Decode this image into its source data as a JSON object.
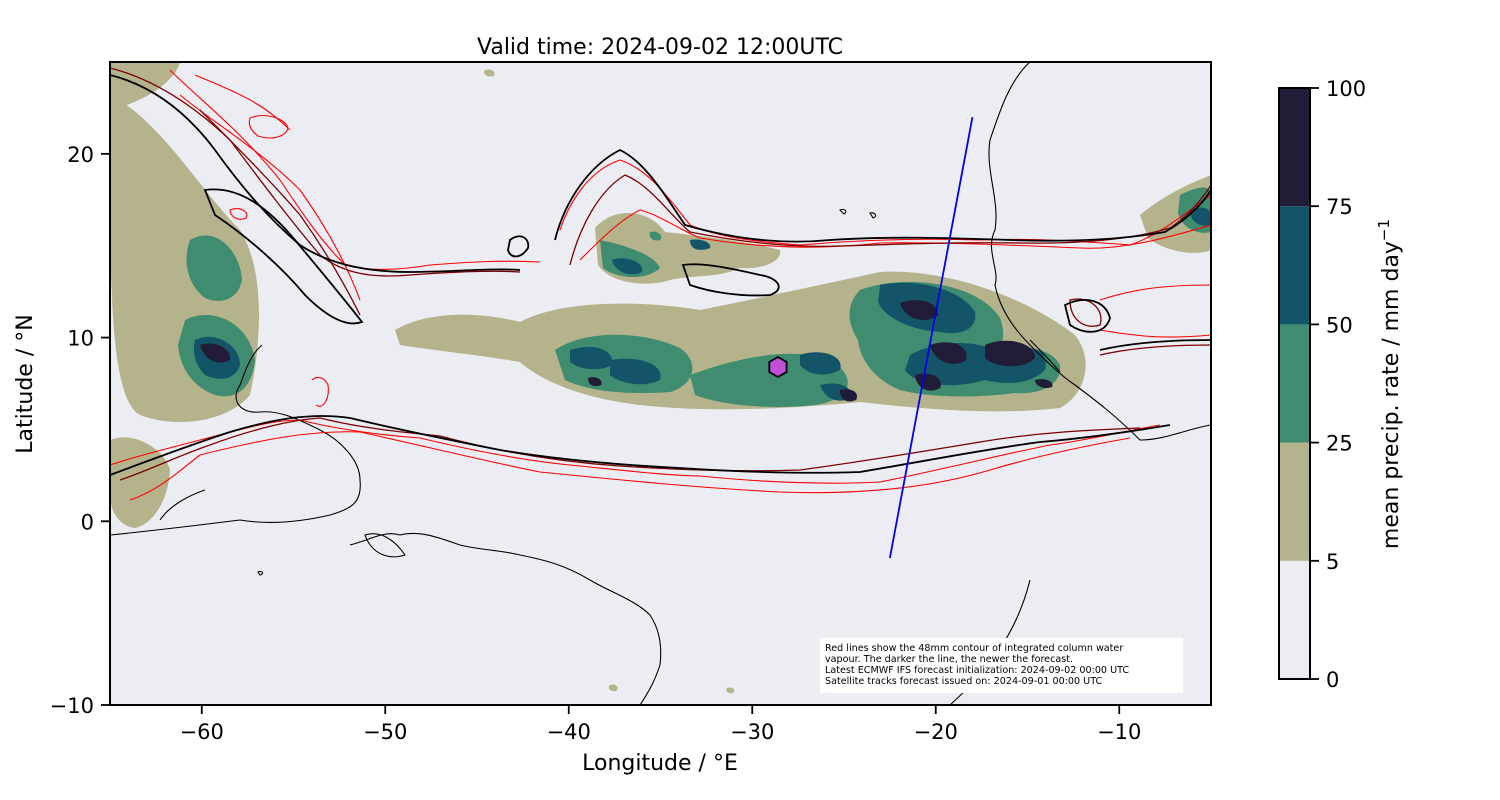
{
  "title": "Valid time: 2024-09-02 12:00UTC",
  "colors": {
    "background": "#ecedf2",
    "precip_5_25": "#b5b38b",
    "precip_25_50": "#3f8c70",
    "precip_50_75": "#145468",
    "precip_75_100": "#211d38",
    "iwv_contour_old": "#ff0000",
    "iwv_contour_new": "#000000",
    "satellite_track": "#0000ee",
    "marker": "#c04fd4"
  },
  "map": {
    "lon_range": [
      -65,
      -5
    ],
    "lat_range": [
      -10,
      25
    ],
    "x_ticks": [
      {
        "value": -60,
        "label": "−60"
      },
      {
        "value": -50,
        "label": "−50"
      },
      {
        "value": -40,
        "label": "−40"
      },
      {
        "value": -30,
        "label": "−30"
      },
      {
        "value": -20,
        "label": "−20"
      },
      {
        "value": -10,
        "label": "−10"
      }
    ],
    "y_ticks": [
      {
        "value": -10,
        "label": "−10"
      },
      {
        "value": 0,
        "label": "0"
      },
      {
        "value": 10,
        "label": "10"
      },
      {
        "value": 20,
        "label": "20"
      }
    ],
    "xlabel": "Longitude / °E",
    "ylabel": "Latitude / °N",
    "satellite_track": [
      [
        -22.5,
        -2
      ],
      [
        -18,
        22
      ]
    ],
    "marker": {
      "lon": -28.6,
      "lat": 8.4,
      "shape": "hexagon"
    },
    "note_lines": [
      "Red lines show the 48mm contour of integrated column water",
      "vapour. The darker the line, the newer the forecast.",
      "Latest ECMWF IFS forecast initialization: 2024-09-02 00:00 UTC",
      "Satellite tracks forecast issued on: 2024-09-01 00:00 UTC"
    ]
  },
  "colorbar": {
    "label": "mean precip. rate / mm day",
    "label_superscript": "−1",
    "levels": [
      0,
      5,
      25,
      50,
      75,
      100
    ],
    "tick_labels": [
      "0",
      "5",
      "25",
      "50",
      "75",
      "100"
    ]
  }
}
